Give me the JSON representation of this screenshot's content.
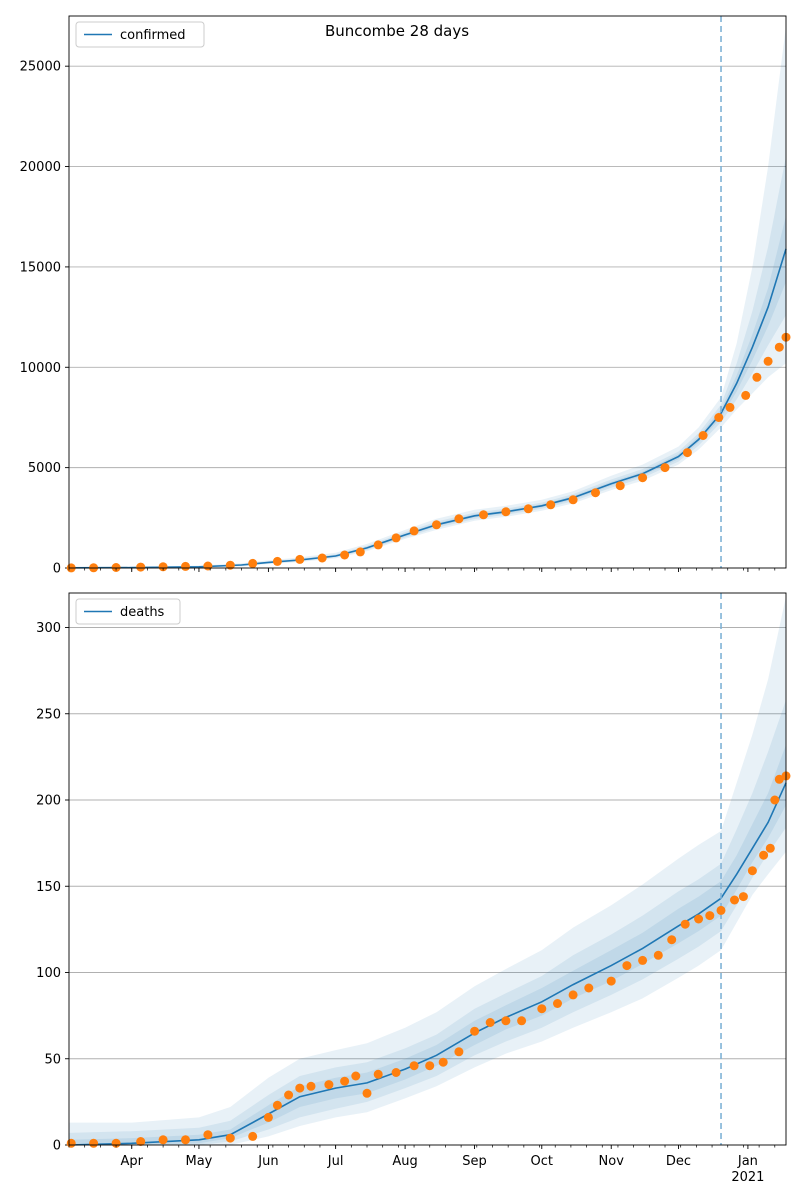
{
  "figure": {
    "suptitle": "Buncombe 28 days"
  },
  "style": {
    "line_color": "#1f77b4",
    "band_color": "#1f77b4",
    "point_color": "#ff7f0e",
    "grid_color": "#b0b0b0",
    "vline_color": "#7fb2d6"
  },
  "chart_data": [
    {
      "type": "line",
      "panel": "top",
      "legend": {
        "label": "confirmed",
        "placement": "upper-left"
      },
      "x_axis": {
        "type": "date",
        "range": [
          "2020-03-04",
          "2021-01-18"
        ],
        "major_ticks": [
          {
            "date": "2020-04-01",
            "label": "Apr"
          },
          {
            "date": "2020-05-01",
            "label": "May"
          },
          {
            "date": "2020-06-01",
            "label": "Jun"
          },
          {
            "date": "2020-07-01",
            "label": "Jul"
          },
          {
            "date": "2020-08-01",
            "label": "Aug"
          },
          {
            "date": "2020-09-01",
            "label": "Sep"
          },
          {
            "date": "2020-10-01",
            "label": "Oct"
          },
          {
            "date": "2020-11-01",
            "label": "Nov"
          },
          {
            "date": "2020-12-01",
            "label": "Dec"
          },
          {
            "date": "2021-01-01",
            "label": "Jan\n2021"
          }
        ],
        "tick_labels_visible": false
      },
      "y_axis": {
        "range": [
          0,
          27500
        ],
        "ticks": [
          0,
          5000,
          10000,
          15000,
          20000,
          25000
        ],
        "grid": true
      },
      "forecast_start": "2020-12-20",
      "model": {
        "name": "confirmed",
        "x": [
          "2020-03-04",
          "2020-04-01",
          "2020-05-01",
          "2020-05-20",
          "2020-06-01",
          "2020-06-15",
          "2020-07-01",
          "2020-07-15",
          "2020-08-01",
          "2020-08-15",
          "2020-09-01",
          "2020-09-15",
          "2020-10-01",
          "2020-10-15",
          "2020-11-01",
          "2020-11-15",
          "2020-12-01",
          "2020-12-10",
          "2020-12-20",
          "2020-12-27",
          "2021-01-03",
          "2021-01-10",
          "2021-01-18"
        ],
        "median": [
          10,
          20,
          60,
          150,
          280,
          400,
          600,
          1000,
          1650,
          2150,
          2600,
          2800,
          3100,
          3500,
          4200,
          4700,
          5550,
          6400,
          7700,
          9200,
          11000,
          13000,
          15900
        ],
        "bands": [
          {
            "level": "outer",
            "lower": [
              0,
              0,
              20,
              80,
              200,
              300,
              480,
              840,
              1450,
              1900,
              2350,
              2550,
              2850,
              3220,
              3880,
              4350,
              5150,
              5900,
              7000,
              7900,
              8700,
              9500,
              10200
            ],
            "upper": [
              30,
              50,
              120,
              240,
              380,
              530,
              760,
              1200,
              1900,
              2450,
              2900,
              3100,
              3400,
              3820,
              4600,
              5150,
              6050,
              7000,
              8500,
              11200,
              15000,
              20000,
              27000
            ]
          },
          {
            "level": "middle",
            "lower": [
              0,
              5,
              35,
              110,
              230,
              340,
              530,
              900,
              1520,
              2000,
              2440,
              2650,
              2950,
              3330,
              4000,
              4490,
              5300,
              6100,
              7270,
              8400,
              9700,
              11100,
              12600
            ],
            "upper": [
              20,
              35,
              90,
              200,
              330,
              470,
              680,
              1110,
              1790,
              2310,
              2760,
              2960,
              3260,
              3680,
              4410,
              4930,
              5800,
              6710,
              8130,
              10200,
              12800,
              16000,
              20500
            ]
          },
          {
            "level": "inner",
            "lower": [
              3,
              12,
              48,
              130,
              255,
              370,
              565,
              950,
              1585,
              2075,
              2520,
              2725,
              3025,
              3415,
              4100,
              4595,
              5425,
              6250,
              7485,
              8800,
              10350,
              12050,
              14250
            ],
            "upper": [
              17,
              28,
              72,
              170,
              305,
              430,
              635,
              1050,
              1715,
              2225,
              2680,
              2875,
              3175,
              3585,
              4300,
              4805,
              5675,
              6550,
              7915,
              9600,
              11650,
              13950,
              17550
            ]
          }
        ]
      },
      "observed": {
        "name": "confirmed",
        "x": [
          "2020-03-05",
          "2020-03-15",
          "2020-03-25",
          "2020-04-05",
          "2020-04-15",
          "2020-04-25",
          "2020-05-05",
          "2020-05-15",
          "2020-05-25",
          "2020-06-05",
          "2020-06-15",
          "2020-06-25",
          "2020-07-05",
          "2020-07-12",
          "2020-07-20",
          "2020-07-28",
          "2020-08-05",
          "2020-08-15",
          "2020-08-25",
          "2020-09-05",
          "2020-09-15",
          "2020-09-25",
          "2020-10-05",
          "2020-10-15",
          "2020-10-25",
          "2020-11-05",
          "2020-11-15",
          "2020-11-25",
          "2020-12-05",
          "2020-12-12",
          "2020-12-19",
          "2020-12-24",
          "2020-12-31",
          "2021-01-05",
          "2021-01-10",
          "2021-01-15",
          "2021-01-18"
        ],
        "y": [
          5,
          10,
          25,
          45,
          60,
          80,
          100,
          140,
          230,
          330,
          430,
          500,
          650,
          800,
          1150,
          1500,
          1850,
          2150,
          2450,
          2650,
          2800,
          2950,
          3150,
          3400,
          3750,
          4100,
          4500,
          5000,
          5750,
          6600,
          7500,
          8000,
          8600,
          9500,
          10300,
          11000,
          11500
        ]
      }
    },
    {
      "type": "line",
      "panel": "bottom",
      "legend": {
        "label": "deaths",
        "placement": "upper-left"
      },
      "x_axis": {
        "type": "date",
        "range": [
          "2020-03-04",
          "2021-01-18"
        ],
        "major_ticks": [
          {
            "date": "2020-04-01",
            "label": "Apr"
          },
          {
            "date": "2020-05-01",
            "label": "May"
          },
          {
            "date": "2020-06-01",
            "label": "Jun"
          },
          {
            "date": "2020-07-01",
            "label": "Jul"
          },
          {
            "date": "2020-08-01",
            "label": "Aug"
          },
          {
            "date": "2020-09-01",
            "label": "Sep"
          },
          {
            "date": "2020-10-01",
            "label": "Oct"
          },
          {
            "date": "2020-11-01",
            "label": "Nov"
          },
          {
            "date": "2020-12-01",
            "label": "Dec"
          },
          {
            "date": "2021-01-01",
            "label": "Jan\n2021"
          }
        ],
        "tick_labels_visible": true
      },
      "y_axis": {
        "range": [
          0,
          320
        ],
        "ticks": [
          0,
          50,
          100,
          150,
          200,
          250,
          300
        ],
        "grid": true
      },
      "forecast_start": "2020-12-20",
      "model": {
        "name": "deaths",
        "x": [
          "2020-03-04",
          "2020-04-01",
          "2020-05-01",
          "2020-05-15",
          "2020-06-01",
          "2020-06-15",
          "2020-07-01",
          "2020-07-15",
          "2020-08-01",
          "2020-08-15",
          "2020-09-01",
          "2020-09-15",
          "2020-10-01",
          "2020-10-15",
          "2020-11-01",
          "2020-11-15",
          "2020-12-01",
          "2020-12-10",
          "2020-12-20",
          "2020-12-27",
          "2021-01-03",
          "2021-01-10",
          "2021-01-18"
        ],
        "median": [
          0,
          1,
          3,
          6,
          18,
          28,
          33,
          36,
          44,
          52,
          65,
          74,
          83,
          93,
          104,
          114,
          127,
          134,
          143,
          157,
          172,
          187,
          210
        ],
        "bands": [
          {
            "level": "outer",
            "lower": [
              0,
              0,
              0,
              0,
              5,
              11,
              16,
              19,
              27,
              34,
              45,
              53,
              60,
              68,
              77,
              85,
              97,
              104,
              113,
              129,
              145,
              157,
              170
            ],
            "upper": [
              13,
              13,
              16,
              22,
              39,
              50,
              55,
              59,
              68,
              77,
              92,
              102,
              113,
              126,
              139,
              151,
              166,
              174,
              182,
              210,
              238,
              270,
              318
            ]
          },
          {
            "level": "middle",
            "lower": [
              0,
              0,
              0,
              2,
              9,
              16,
              21,
              25,
              33,
              40,
              52,
              60,
              68,
              77,
              87,
              96,
              108,
              115,
              124,
              139,
              155,
              169,
              184
            ],
            "upper": [
              7,
              8,
              10,
              14,
              29,
              40,
              45,
              48,
              56,
              64,
              79,
              88,
              98,
              110,
              122,
              133,
              147,
              154,
              163,
              183,
              204,
              228,
              258
            ]
          },
          {
            "level": "inner",
            "lower": [
              0,
              0,
              1,
              4,
              13,
              22,
              27,
              30,
              38,
              46,
              58,
              67,
              75,
              85,
              95,
              105,
              117,
              124,
              133,
              148,
              164,
              178,
              197
            ],
            "upper": [
              3,
              4,
              6,
              9,
              23,
              34,
              39,
              42,
              50,
              58,
              72,
              81,
              91,
              101,
              113,
              123,
              137,
              144,
              153,
              168,
              186,
              204,
              232
            ]
          }
        ]
      },
      "observed": {
        "name": "deaths",
        "x": [
          "2020-03-05",
          "2020-03-15",
          "2020-03-25",
          "2020-04-05",
          "2020-04-15",
          "2020-04-25",
          "2020-05-05",
          "2020-05-15",
          "2020-05-25",
          "2020-06-01",
          "2020-06-05",
          "2020-06-10",
          "2020-06-15",
          "2020-06-20",
          "2020-06-28",
          "2020-07-05",
          "2020-07-10",
          "2020-07-15",
          "2020-07-20",
          "2020-07-28",
          "2020-08-05",
          "2020-08-12",
          "2020-08-18",
          "2020-08-25",
          "2020-09-01",
          "2020-09-08",
          "2020-09-15",
          "2020-09-22",
          "2020-10-01",
          "2020-10-08",
          "2020-10-15",
          "2020-10-22",
          "2020-11-01",
          "2020-11-08",
          "2020-11-15",
          "2020-11-22",
          "2020-11-28",
          "2020-12-04",
          "2020-12-10",
          "2020-12-15",
          "2020-12-20",
          "2020-12-26",
          "2020-12-30",
          "2021-01-03",
          "2021-01-08",
          "2021-01-11",
          "2021-01-13",
          "2021-01-15",
          "2021-01-18"
        ],
        "y": [
          1,
          1,
          1,
          2,
          3,
          3,
          6,
          4,
          5,
          16,
          23,
          29,
          33,
          34,
          35,
          37,
          40,
          30,
          41,
          42,
          46,
          46,
          48,
          54,
          66,
          71,
          72,
          72,
          79,
          82,
          87,
          91,
          95,
          104,
          107,
          110,
          119,
          128,
          131,
          133,
          136,
          142,
          144,
          159,
          168,
          172,
          200,
          212,
          214
        ]
      }
    }
  ]
}
